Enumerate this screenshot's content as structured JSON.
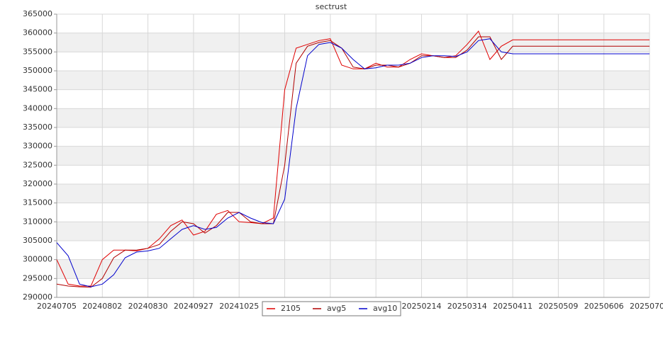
{
  "chart_data": {
    "type": "line",
    "title": "sectrust",
    "x": [
      "20240705",
      "20240712",
      "20240719",
      "20240726",
      "20240802",
      "20240809",
      "20240816",
      "20240823",
      "20240830",
      "20240906",
      "20240913",
      "20240920",
      "20240927",
      "20241004",
      "20241011",
      "20241018",
      "20241025",
      "20241101",
      "20241108",
      "20241115",
      "20241122",
      "20241129",
      "20241206",
      "20241213",
      "20241220",
      "20241227",
      "20250103",
      "20250110",
      "20250117",
      "20250124",
      "20250131",
      "20250207",
      "20250214",
      "20250221",
      "20250228",
      "20250307",
      "20250314",
      "20250321",
      "20250328",
      "20250404",
      "20250411",
      "20250418",
      "20250425",
      "20250502",
      "20250509",
      "20250516",
      "20250523",
      "20250530",
      "20250606",
      "20250613",
      "20250620",
      "20250627",
      "20250704"
    ],
    "xticks": [
      "20240705",
      "20240802",
      "20240830",
      "20240927",
      "20241025",
      "20241122",
      "20241220",
      "20250117",
      "20250214",
      "20250314",
      "20250411",
      "20250509",
      "20250606",
      "20250704"
    ],
    "series": [
      {
        "name": "2105",
        "color": "#e00000",
        "values": [
          300000,
          293500,
          293000,
          293000,
          300000,
          302500,
          302500,
          302300,
          303000,
          305500,
          309000,
          310500,
          306500,
          307500,
          312000,
          313000,
          310000,
          309800,
          309500,
          311000,
          345000,
          356000,
          357000,
          358000,
          358500,
          351500,
          350500,
          350500,
          352000,
          351000,
          351000,
          353000,
          354500,
          354000,
          353500,
          354000,
          357000,
          360500,
          353000,
          356500,
          358200,
          358200,
          358200,
          358200,
          358200,
          358200,
          358200,
          358200,
          358200,
          358200,
          358200,
          358200,
          358200
        ]
      },
      {
        "name": "avg5",
        "color": "#b00000",
        "values": [
          293500,
          293000,
          292800,
          292700,
          295000,
          300500,
          302500,
          302500,
          303000,
          304000,
          307500,
          310000,
          309500,
          307000,
          309000,
          312500,
          312500,
          310000,
          309500,
          309500,
          325000,
          352000,
          356500,
          357500,
          358000,
          356000,
          351000,
          350500,
          351500,
          351500,
          351000,
          352000,
          354000,
          354000,
          353500,
          353500,
          355500,
          359000,
          359000,
          353000,
          356500,
          356500,
          356500,
          356500,
          356500,
          356500,
          356500,
          356500,
          356500,
          356500,
          356500,
          356500,
          356500
        ]
      },
      {
        "name": "avg10",
        "color": "#0000cc",
        "values": [
          304500,
          301000,
          293500,
          292800,
          293500,
          296000,
          300500,
          302000,
          302300,
          303000,
          305500,
          308000,
          309000,
          308000,
          308500,
          311000,
          312500,
          311000,
          309800,
          309500,
          316000,
          340000,
          354000,
          357000,
          357500,
          356000,
          353000,
          350500,
          350800,
          351500,
          351500,
          352000,
          353500,
          354000,
          354000,
          353800,
          355000,
          358000,
          358500,
          355000,
          354500,
          354500,
          354500,
          354500,
          354500,
          354500,
          354500,
          354500,
          354500,
          354500,
          354500,
          354500,
          354500
        ]
      }
    ],
    "ylim": [
      290000,
      365000
    ],
    "yticks": [
      290000,
      295000,
      300000,
      305000,
      310000,
      315000,
      320000,
      325000,
      330000,
      335000,
      340000,
      345000,
      350000,
      355000,
      360000,
      365000
    ],
    "grid": true,
    "legend": "bottom"
  }
}
